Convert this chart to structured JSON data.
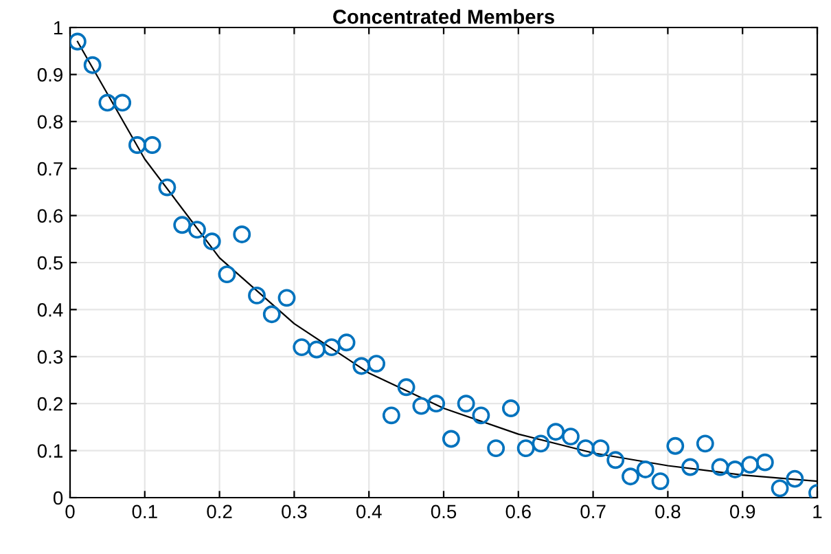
{
  "chart_data": {
    "type": "scatter",
    "title": "Concentrated Members",
    "xlim": [
      0,
      1
    ],
    "ylim": [
      0,
      1
    ],
    "xticks": [
      0,
      0.1,
      0.2,
      0.3,
      0.4,
      0.5,
      0.6,
      0.7,
      0.8,
      0.9,
      1
    ],
    "yticks": [
      0,
      0.1,
      0.2,
      0.3,
      0.4,
      0.5,
      0.6,
      0.7,
      0.8,
      0.9,
      1
    ],
    "grid": true,
    "series": [
      {
        "color": "#0072bd",
        "marker": "circle",
        "x": [
          0.01,
          0.03,
          0.05,
          0.07,
          0.09,
          0.11,
          0.13,
          0.15,
          0.17,
          0.19,
          0.21,
          0.23,
          0.25,
          0.27,
          0.29,
          0.31,
          0.33,
          0.35,
          0.37,
          0.39,
          0.41,
          0.43,
          0.45,
          0.47,
          0.49,
          0.51,
          0.53,
          0.55,
          0.57,
          0.59,
          0.61,
          0.63,
          0.65,
          0.67,
          0.69,
          0.71,
          0.73,
          0.75,
          0.77,
          0.79,
          0.81,
          0.83,
          0.85,
          0.87,
          0.89,
          0.91,
          0.93,
          0.95,
          0.97,
          1.0
        ],
        "values": [
          0.97,
          0.92,
          0.84,
          0.84,
          0.75,
          0.75,
          0.66,
          0.58,
          0.57,
          0.545,
          0.475,
          0.56,
          0.43,
          0.39,
          0.425,
          0.32,
          0.315,
          0.32,
          0.33,
          0.28,
          0.285,
          0.175,
          0.235,
          0.195,
          0.2,
          0.125,
          0.2,
          0.175,
          0.105,
          0.19,
          0.105,
          0.115,
          0.14,
          0.13,
          0.105,
          0.105,
          0.08,
          0.045,
          0.06,
          0.035,
          0.11,
          0.065,
          0.115,
          0.065,
          0.06,
          0.07,
          0.075,
          0.02,
          0.04,
          0.01
        ]
      },
      {
        "type": "line",
        "color": "#000000",
        "marker": "none",
        "line_style": "solid",
        "x": [
          0.01,
          0.1,
          0.2,
          0.3,
          0.4,
          0.5,
          0.6,
          0.7,
          0.8,
          0.9,
          1.0
        ],
        "values": [
          0.97,
          0.72,
          0.51,
          0.37,
          0.265,
          0.19,
          0.135,
          0.095,
          0.068,
          0.048,
          0.035
        ]
      }
    ]
  }
}
